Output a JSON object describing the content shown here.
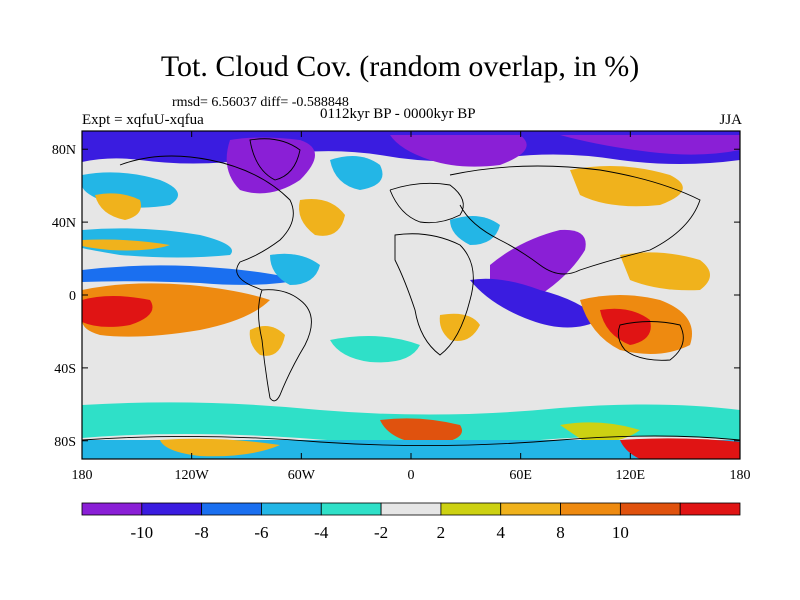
{
  "title": "Tot. Cloud Cov. (random overlap, in %)",
  "stats": "rmsd= 6.56037 diff= -0.588848",
  "experiment": "Expt = xqfuU-xqfua",
  "period": "0112kyr BP - 0000kyr BP",
  "season": "JJA",
  "axes": {
    "lat_labels": [
      "80N",
      "40N",
      "0",
      "40S",
      "80S"
    ],
    "lat_values": [
      80,
      40,
      0,
      -40,
      -80
    ],
    "lon_labels": [
      "180",
      "120W",
      "60W",
      "0",
      "60E",
      "120E",
      "180"
    ],
    "lon_values": [
      -180,
      -120,
      -60,
      0,
      60,
      120,
      180
    ]
  },
  "colorbar": {
    "labels": [
      "-10",
      "-8",
      "-6",
      "-4",
      "-2",
      "2",
      "4",
      "8",
      "10"
    ],
    "colors": [
      "#8a1fd6",
      "#3a1ce0",
      "#1a6ff0",
      "#23b6e6",
      "#2fe0c8",
      "#e6e6e6",
      "#cdd112",
      "#f0b21c",
      "#ee8a10",
      "#e0520e",
      "#e01414"
    ]
  }
}
